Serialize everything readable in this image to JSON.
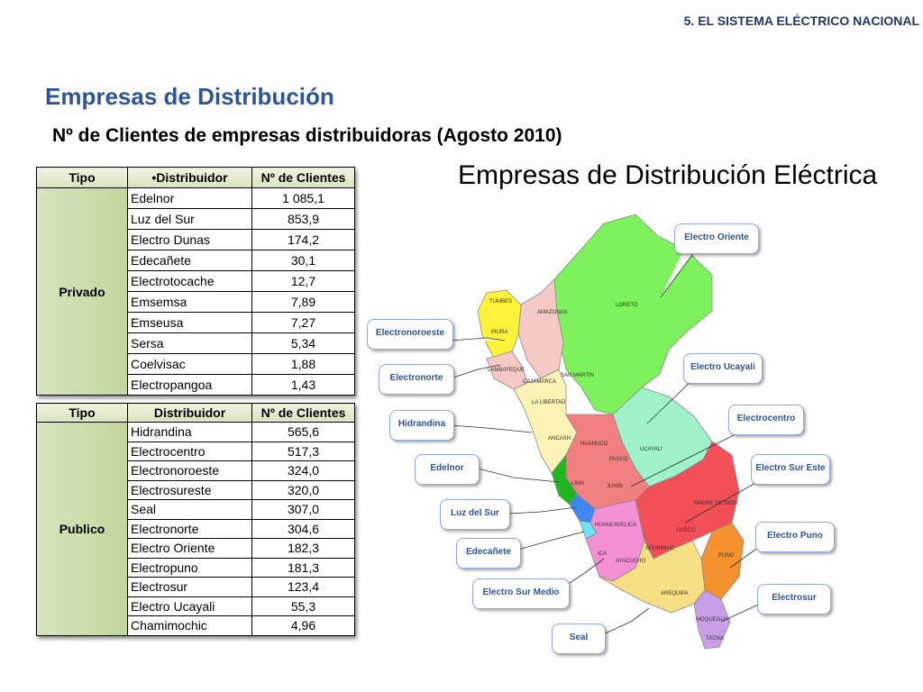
{
  "header": "5.  EL SISTEMA ELÉCTRICO NACIONAL",
  "title": "Empresas de Distribución",
  "subtitle": "Nº  de Clientes de empresas distribuidoras (Agosto 2010)",
  "table_privado": {
    "headers": [
      "Tipo",
      "•Distribuidor",
      "Nº de Clientes"
    ],
    "tipo": "Privado",
    "rows": [
      {
        "dist": "Edelnor",
        "num": "1 085,1"
      },
      {
        "dist": "Luz del Sur",
        "num": "853,9"
      },
      {
        "dist": "Electro Dunas",
        "num": "174,2"
      },
      {
        "dist": "Edecañete",
        "num": "30,1"
      },
      {
        "dist": "Electrotocache",
        "num": "12,7"
      },
      {
        "dist": "Emsemsa",
        "num": "7,89"
      },
      {
        "dist": "Emseusa",
        "num": "7,27"
      },
      {
        "dist": "Sersa",
        "num": "5,34"
      },
      {
        "dist": "Coelvisac",
        "num": "1,88"
      },
      {
        "dist": "Electropangoa",
        "num": "1,43"
      }
    ]
  },
  "table_publico": {
    "headers": [
      "Tipo",
      "Distribuidor",
      "Nº de Clientes"
    ],
    "tipo": "Publico",
    "rows": [
      {
        "dist": "Hidrandina",
        "num": "565,6"
      },
      {
        "dist": "Electrocentro",
        "num": "517,3"
      },
      {
        "dist": "Electronoroeste",
        "num": "324,0"
      },
      {
        "dist": "Electrosureste",
        "num": "320,0"
      },
      {
        "dist": "Seal",
        "num": "307,0"
      },
      {
        "dist": "Electronorte",
        "num": "304,6"
      },
      {
        "dist": "Electro Oriente",
        "num": "182,3"
      },
      {
        "dist": "Electropuno",
        "num": "181,3"
      },
      {
        "dist": "Electrosur",
        "num": "123,4"
      },
      {
        "dist": "Electro Ucayali",
        "num": "55,3"
      },
      {
        "dist": "Chamimochic",
        "num": "4,96"
      }
    ]
  },
  "map": {
    "title": "Empresas de Distribución Eléctrica",
    "callouts": [
      "Electro Oriente",
      "Electronoroeste",
      "Electronorte",
      "Electro Ucayali",
      "Hidrandina",
      "Electrocentro",
      "Edelnor",
      "Electro Sur Este",
      "Luz del Sur",
      "Electro Puno",
      "Edecañete",
      "Electro Sur Medio",
      "Electrosur",
      "Seal"
    ],
    "regions": [
      "TUMBES",
      "AMAZONAS",
      "LORETO",
      "PIURA",
      "LAMBAYEQUE",
      "CAJAMARCA",
      "SAN MARTIN",
      "LA LIBERTAD",
      "ANCASH",
      "HUANUCO",
      "UCAYALI",
      "PASCO",
      "JUNIN",
      "LIMA",
      "MADRE DE DIOS",
      "HUANCAVELICA",
      "CUSCO",
      "APURIMAC",
      "ICA",
      "AYACUCHO",
      "PUNO",
      "AREQUIPA",
      "MOQUEGUA",
      "TACNA"
    ],
    "colors": {
      "loreto": "#7df25c",
      "piura": "#fff23a",
      "amazonas": "#f6c9c4",
      "ucayali": "#9ff2c9",
      "hidrandina": "#fbf3b5",
      "centro": "#f27f7f",
      "lima": "#20b820",
      "luz": "#3f86f0",
      "canete": "#6fe2f2",
      "surmedio": "#f38fd3",
      "sureste": "#f24f57",
      "puno": "#f6922d",
      "seal": "#f7e083",
      "tacna": "#c99ee8"
    }
  }
}
